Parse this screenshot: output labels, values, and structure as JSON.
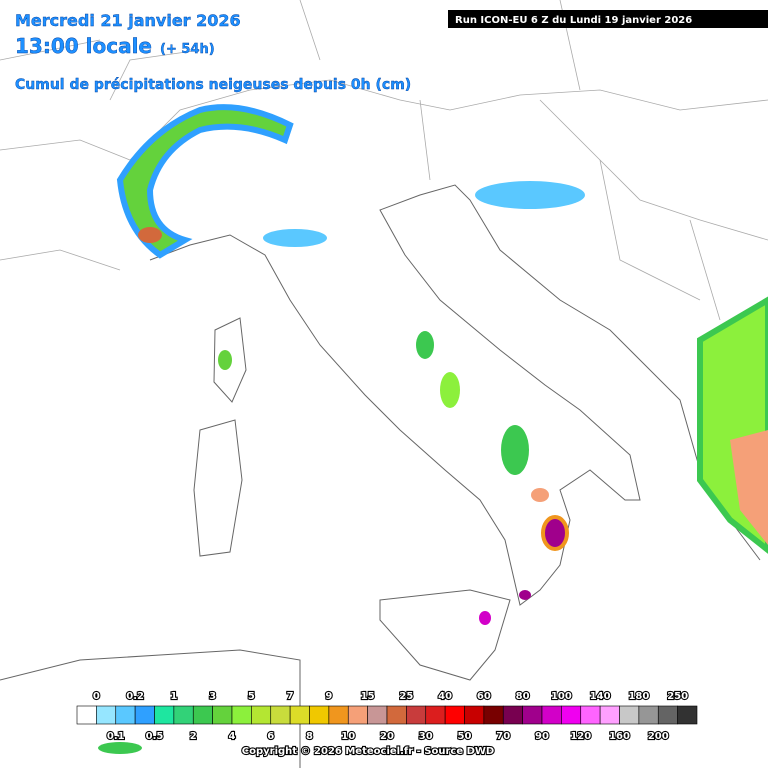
{
  "header": {
    "date": "Mercredi 21 janvier 2026",
    "time": "13:00 locale",
    "lead": "(+ 54h)",
    "product": "Cumul de précipitations neigeuses depuis 0h (cm)",
    "run": "Run ICON-EU 6 Z du Lundi 19 janvier 2026"
  },
  "legend": {
    "labels": [
      0,
      0.1,
      0.2,
      0.5,
      1,
      2,
      3,
      4,
      5,
      6,
      7,
      8,
      9,
      10,
      15,
      20,
      25,
      30,
      40,
      50,
      60,
      70,
      80,
      90,
      100,
      120,
      140,
      160,
      180,
      200,
      250
    ],
    "colors": [
      "#ffffff",
      "#96e6ff",
      "#5ac8ff",
      "#2fa0ff",
      "#1ee6a0",
      "#32d278",
      "#3cc850",
      "#64d23c",
      "#8cf03c",
      "#b4e632",
      "#c8dc3c",
      "#dcdc28",
      "#f0c800",
      "#f0961e",
      "#f5a078",
      "#c89696",
      "#d2693c",
      "#c83c3c",
      "#dc1e1e",
      "#ff0000",
      "#c80000",
      "#780000",
      "#780050",
      "#a0008c",
      "#d200c8",
      "#f000f0",
      "#ff64ff",
      "#ffa0ff",
      "#c8c8c8",
      "#969696",
      "#646464",
      "#323232"
    ]
  },
  "footer": {
    "copyright": "Copyright © 2026 Meteociel.fr - Source DWD"
  }
}
